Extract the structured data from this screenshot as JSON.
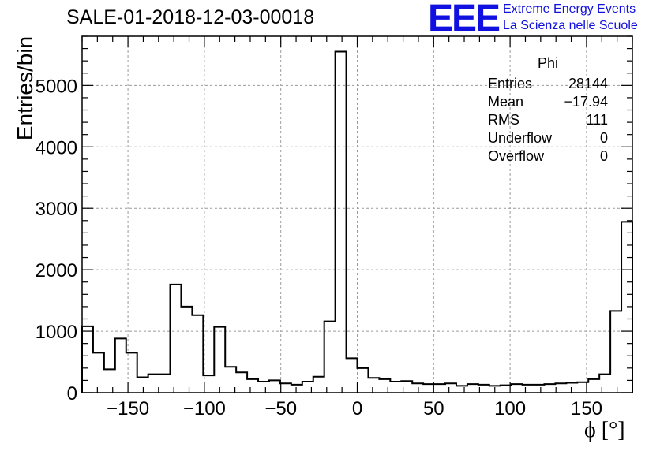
{
  "header": {
    "title": "SALE-01-2018-12-03-00018",
    "logo_text": "EEE",
    "brand_line1": "Extreme Energy Events",
    "brand_line2": "La Scienza nelle Scuole"
  },
  "stats": {
    "title": "Phi",
    "rows": [
      {
        "label": "Entries",
        "value": "28144"
      },
      {
        "label": "Mean",
        "value": "−17.94"
      },
      {
        "label": "RMS",
        "value": "111"
      },
      {
        "label": "Underflow",
        "value": "0"
      },
      {
        "label": "Overflow",
        "value": "0"
      }
    ]
  },
  "chart_data": {
    "type": "histogram",
    "ylabel": "Entries/bin",
    "xlabel": "ϕ [°]",
    "xlim": [
      -180,
      180
    ],
    "ylim": [
      0,
      5800
    ],
    "bin_edges_start": -180,
    "bin_width": 7.2,
    "values": [
      1080,
      650,
      380,
      880,
      650,
      250,
      300,
      300,
      1760,
      1400,
      1260,
      280,
      1070,
      420,
      330,
      220,
      180,
      200,
      150,
      130,
      180,
      260,
      1160,
      5550,
      560,
      400,
      240,
      220,
      180,
      190,
      150,
      140,
      140,
      150,
      110,
      140,
      130,
      110,
      120,
      140,
      130,
      130,
      140,
      150,
      160,
      170,
      220,
      300,
      1330,
      2780
    ],
    "xticks": [
      -150,
      -100,
      -50,
      0,
      50,
      100,
      150
    ],
    "xtick_labels": [
      "−150",
      "−100",
      "−50",
      "0",
      "50",
      "100",
      "150"
    ],
    "yticks": [
      0,
      1000,
      2000,
      3000,
      4000,
      5000
    ],
    "ytick_labels": [
      "0",
      "1000",
      "2000",
      "3000",
      "4000",
      "5000"
    ],
    "grid": true,
    "colors": {
      "line": "#000000",
      "grid": "#9a9a9a"
    }
  }
}
